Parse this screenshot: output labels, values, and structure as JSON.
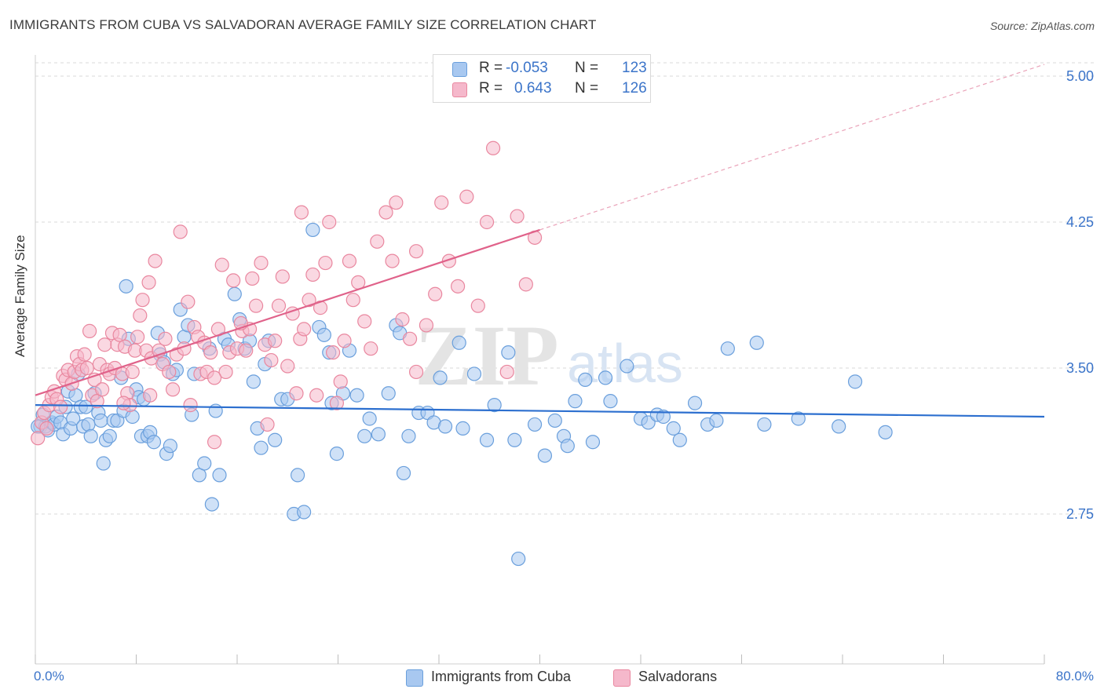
{
  "header": {
    "title": "IMMIGRANTS FROM CUBA VS SALVADORAN AVERAGE FAMILY SIZE CORRELATION CHART",
    "source": "Source: ZipAtlas.com"
  },
  "watermark": {
    "text_zip": "ZIP",
    "text_atlas": "atlas"
  },
  "legend_top": {
    "rows": [
      {
        "r_label": "R =",
        "r_value": "-0.053",
        "n_label": "N =",
        "n_value": "123",
        "color": "#a8c8f0"
      },
      {
        "r_label": "R =",
        "r_value": "0.643",
        "n_label": "N =",
        "n_value": "126",
        "color": "#f5b8cb"
      }
    ]
  },
  "legend_bottom": {
    "items": [
      {
        "label": "Immigrants from Cuba",
        "color": "#a8c8f0"
      },
      {
        "label": "Salvadorans",
        "color": "#f5b8cb"
      }
    ]
  },
  "colors": {
    "blue_fill": "#a8c8f0",
    "blue_stroke": "#6a9fdc",
    "blue_line": "#2c6fcf",
    "pink_fill": "#f5b8cb",
    "pink_stroke": "#e9879f",
    "pink_line": "#e0628a",
    "axis_text": "#3b74c9",
    "grid": "#d9d9d9"
  },
  "chart_data": {
    "type": "scatter",
    "title": "IMMIGRANTS FROM CUBA VS SALVADORAN AVERAGE FAMILY SIZE CORRELATION CHART",
    "xlabel": "",
    "ylabel": "Average Family Size",
    "xlim": [
      0,
      80
    ],
    "ylim": [
      2.0,
      5.1
    ],
    "x_tick_labels": [
      "0.0%",
      "80.0%"
    ],
    "y_ticks": [
      2.75,
      3.5,
      4.25,
      5.0
    ],
    "y_tick_labels": [
      "2.75",
      "3.50",
      "4.25",
      "5.00"
    ],
    "grid": "horizontal dashed",
    "legend_position": "top-center",
    "series": [
      {
        "name": "Immigrants from Cuba",
        "r": -0.053,
        "n": 123,
        "trend": {
          "x": [
            0,
            80
          ],
          "y": [
            3.31,
            3.25
          ],
          "extrapolated": false
        },
        "points": [
          [
            0.4,
            3.2
          ],
          [
            0.6,
            3.26
          ],
          [
            0.8,
            3.2
          ],
          [
            1.0,
            3.18
          ],
          [
            1.3,
            3.22
          ],
          [
            1.5,
            3.21
          ],
          [
            1.7,
            3.25
          ],
          [
            2.0,
            3.22
          ],
          [
            2.2,
            3.16
          ],
          [
            2.4,
            3.3
          ],
          [
            2.6,
            3.38
          ],
          [
            2.8,
            3.19
          ],
          [
            3.0,
            3.24
          ],
          [
            3.2,
            3.36
          ],
          [
            3.4,
            3.47
          ],
          [
            3.6,
            3.3
          ],
          [
            3.8,
            3.2
          ],
          [
            4.0,
            3.3
          ],
          [
            4.2,
            3.21
          ],
          [
            4.4,
            3.15
          ],
          [
            4.7,
            3.37
          ],
          [
            5.0,
            3.27
          ],
          [
            5.2,
            3.23
          ],
          [
            5.4,
            3.01
          ],
          [
            5.6,
            3.13
          ],
          [
            5.9,
            3.15
          ],
          [
            6.2,
            3.23
          ],
          [
            6.5,
            3.23
          ],
          [
            6.8,
            3.45
          ],
          [
            7.0,
            3.28
          ],
          [
            7.2,
            3.92
          ],
          [
            7.4,
            3.65
          ],
          [
            7.7,
            3.25
          ],
          [
            8.0,
            3.39
          ],
          [
            8.2,
            3.35
          ],
          [
            8.4,
            3.15
          ],
          [
            8.6,
            3.34
          ],
          [
            8.9,
            3.15
          ],
          [
            9.1,
            3.17
          ],
          [
            9.4,
            3.12
          ],
          [
            9.7,
            3.68
          ],
          [
            9.9,
            3.57
          ],
          [
            10.2,
            3.53
          ],
          [
            10.4,
            3.06
          ],
          [
            10.7,
            3.1
          ],
          [
            10.9,
            3.47
          ],
          [
            11.2,
            3.49
          ],
          [
            11.5,
            3.8
          ],
          [
            11.8,
            3.66
          ],
          [
            12.1,
            3.72
          ],
          [
            12.4,
            3.26
          ],
          [
            12.6,
            3.47
          ],
          [
            13.0,
            2.95
          ],
          [
            13.4,
            3.01
          ],
          [
            13.8,
            3.6
          ],
          [
            14.0,
            2.8
          ],
          [
            14.3,
            3.28
          ],
          [
            14.6,
            2.95
          ],
          [
            15.0,
            3.65
          ],
          [
            15.3,
            3.62
          ],
          [
            15.8,
            3.88
          ],
          [
            16.2,
            3.75
          ],
          [
            16.6,
            3.6
          ],
          [
            17.0,
            3.64
          ],
          [
            17.3,
            3.43
          ],
          [
            17.6,
            3.19
          ],
          [
            17.9,
            3.09
          ],
          [
            18.2,
            3.52
          ],
          [
            18.5,
            3.64
          ],
          [
            19.0,
            3.13
          ],
          [
            19.5,
            3.34
          ],
          [
            20.0,
            3.34
          ],
          [
            20.5,
            2.75
          ],
          [
            20.8,
            2.95
          ],
          [
            21.3,
            2.76
          ],
          [
            22.0,
            4.21
          ],
          [
            22.5,
            3.71
          ],
          [
            22.9,
            3.67
          ],
          [
            23.3,
            3.58
          ],
          [
            23.5,
            3.32
          ],
          [
            23.9,
            3.06
          ],
          [
            24.4,
            3.37
          ],
          [
            24.9,
            3.59
          ],
          [
            25.5,
            3.36
          ],
          [
            26.1,
            3.15
          ],
          [
            26.5,
            3.24
          ],
          [
            27.2,
            3.16
          ],
          [
            28.0,
            3.37
          ],
          [
            28.6,
            3.72
          ],
          [
            28.9,
            3.68
          ],
          [
            29.2,
            2.96
          ],
          [
            29.6,
            3.15
          ],
          [
            30.4,
            3.27
          ],
          [
            31.1,
            3.27
          ],
          [
            31.6,
            3.22
          ],
          [
            32.1,
            3.45
          ],
          [
            32.5,
            3.2
          ],
          [
            33.6,
            3.63
          ],
          [
            33.9,
            3.19
          ],
          [
            34.8,
            3.47
          ],
          [
            35.8,
            3.13
          ],
          [
            36.4,
            3.31
          ],
          [
            37.5,
            3.58
          ],
          [
            38.0,
            3.13
          ],
          [
            38.3,
            2.52
          ],
          [
            39.6,
            3.21
          ],
          [
            40.4,
            3.05
          ],
          [
            41.2,
            3.23
          ],
          [
            41.9,
            3.15
          ],
          [
            42.2,
            3.1
          ],
          [
            42.8,
            3.33
          ],
          [
            43.6,
            3.44
          ],
          [
            44.2,
            3.12
          ],
          [
            45.2,
            3.45
          ],
          [
            45.6,
            3.33
          ],
          [
            46.9,
            3.51
          ],
          [
            48.0,
            3.24
          ],
          [
            48.6,
            3.22
          ],
          [
            49.3,
            3.26
          ],
          [
            49.8,
            3.25
          ],
          [
            50.6,
            3.19
          ],
          [
            51.1,
            3.13
          ],
          [
            52.3,
            3.32
          ],
          [
            53.3,
            3.21
          ],
          [
            54.0,
            3.23
          ],
          [
            54.9,
            3.6
          ],
          [
            57.2,
            3.63
          ],
          [
            57.8,
            3.21
          ],
          [
            60.5,
            3.24
          ],
          [
            63.7,
            3.2
          ],
          [
            65.0,
            3.43
          ],
          [
            67.4,
            3.17
          ],
          [
            0.2,
            3.2
          ]
        ]
      },
      {
        "name": "Salvadorans",
        "r": 0.643,
        "n": 126,
        "trend": {
          "x": [
            0,
            80
          ],
          "y": [
            3.36,
            5.06
          ],
          "solid_until_x": 40,
          "extrapolated": true
        },
        "points": [
          [
            0.2,
            3.14
          ],
          [
            0.5,
            3.22
          ],
          [
            0.7,
            3.27
          ],
          [
            0.9,
            3.19
          ],
          [
            1.1,
            3.31
          ],
          [
            1.3,
            3.35
          ],
          [
            1.5,
            3.38
          ],
          [
            1.7,
            3.34
          ],
          [
            2.0,
            3.3
          ],
          [
            2.2,
            3.46
          ],
          [
            2.4,
            3.44
          ],
          [
            2.6,
            3.49
          ],
          [
            2.9,
            3.42
          ],
          [
            3.1,
            3.48
          ],
          [
            3.3,
            3.56
          ],
          [
            3.5,
            3.52
          ],
          [
            3.7,
            3.49
          ],
          [
            3.9,
            3.57
          ],
          [
            4.1,
            3.5
          ],
          [
            4.3,
            3.69
          ],
          [
            4.5,
            3.36
          ],
          [
            4.7,
            3.44
          ],
          [
            4.9,
            3.33
          ],
          [
            5.1,
            3.52
          ],
          [
            5.3,
            3.39
          ],
          [
            5.5,
            3.62
          ],
          [
            5.7,
            3.49
          ],
          [
            5.9,
            3.47
          ],
          [
            6.1,
            3.68
          ],
          [
            6.3,
            3.5
          ],
          [
            6.5,
            3.62
          ],
          [
            6.7,
            3.67
          ],
          [
            6.9,
            3.47
          ],
          [
            7.1,
            3.61
          ],
          [
            7.3,
            3.37
          ],
          [
            7.5,
            3.31
          ],
          [
            7.7,
            3.48
          ],
          [
            7.9,
            3.59
          ],
          [
            8.1,
            3.66
          ],
          [
            8.3,
            3.77
          ],
          [
            8.5,
            3.85
          ],
          [
            8.8,
            3.59
          ],
          [
            9.0,
            3.94
          ],
          [
            9.2,
            3.55
          ],
          [
            9.5,
            4.05
          ],
          [
            9.8,
            3.59
          ],
          [
            10.1,
            3.52
          ],
          [
            10.3,
            3.65
          ],
          [
            10.6,
            3.48
          ],
          [
            10.9,
            3.39
          ],
          [
            11.2,
            3.57
          ],
          [
            11.5,
            4.2
          ],
          [
            11.8,
            3.6
          ],
          [
            12.1,
            3.84
          ],
          [
            12.3,
            3.31
          ],
          [
            12.6,
            3.71
          ],
          [
            12.9,
            3.66
          ],
          [
            13.1,
            3.47
          ],
          [
            13.4,
            3.63
          ],
          [
            13.6,
            3.48
          ],
          [
            13.9,
            3.58
          ],
          [
            14.2,
            3.12
          ],
          [
            14.5,
            3.7
          ],
          [
            14.8,
            4.03
          ],
          [
            15.1,
            3.48
          ],
          [
            15.4,
            3.58
          ],
          [
            15.7,
            3.95
          ],
          [
            16.0,
            3.6
          ],
          [
            16.4,
            3.69
          ],
          [
            16.7,
            3.59
          ],
          [
            17.0,
            3.7
          ],
          [
            17.2,
            3.96
          ],
          [
            17.5,
            3.82
          ],
          [
            17.9,
            4.04
          ],
          [
            18.2,
            3.62
          ],
          [
            18.4,
            3.21
          ],
          [
            18.7,
            3.54
          ],
          [
            19.0,
            3.64
          ],
          [
            19.3,
            3.82
          ],
          [
            19.6,
            3.97
          ],
          [
            20.0,
            3.51
          ],
          [
            20.4,
            3.78
          ],
          [
            20.7,
            3.37
          ],
          [
            21.0,
            3.65
          ],
          [
            21.3,
            3.7
          ],
          [
            21.7,
            3.85
          ],
          [
            22.0,
            3.98
          ],
          [
            22.3,
            3.36
          ],
          [
            22.6,
            3.81
          ],
          [
            23.0,
            4.04
          ],
          [
            23.3,
            4.25
          ],
          [
            23.6,
            3.58
          ],
          [
            23.9,
            3.32
          ],
          [
            24.2,
            3.43
          ],
          [
            24.5,
            3.64
          ],
          [
            24.9,
            4.05
          ],
          [
            25.2,
            3.85
          ],
          [
            25.6,
            3.94
          ],
          [
            26.1,
            3.74
          ],
          [
            26.6,
            3.6
          ],
          [
            27.1,
            4.15
          ],
          [
            27.8,
            4.3
          ],
          [
            28.3,
            4.05
          ],
          [
            28.6,
            4.35
          ],
          [
            29.1,
            3.75
          ],
          [
            29.7,
            3.65
          ],
          [
            30.2,
            4.1
          ],
          [
            31.0,
            3.72
          ],
          [
            31.7,
            3.88
          ],
          [
            32.2,
            4.35
          ],
          [
            32.8,
            4.05
          ],
          [
            33.5,
            3.92
          ],
          [
            34.2,
            4.38
          ],
          [
            35.1,
            3.82
          ],
          [
            35.8,
            4.25
          ],
          [
            36.3,
            4.63
          ],
          [
            37.4,
            3.48
          ],
          [
            38.2,
            4.28
          ],
          [
            38.9,
            3.93
          ],
          [
            39.6,
            4.17
          ],
          [
            7.0,
            3.32
          ],
          [
            9.1,
            3.36
          ],
          [
            14.2,
            3.45
          ],
          [
            16.3,
            3.73
          ],
          [
            21.1,
            4.3
          ],
          [
            30.2,
            3.48
          ]
        ]
      }
    ]
  },
  "axes": {
    "x_left_label": "0.0%",
    "x_right_label": "80.0%",
    "y_title": "Average Family Size"
  }
}
